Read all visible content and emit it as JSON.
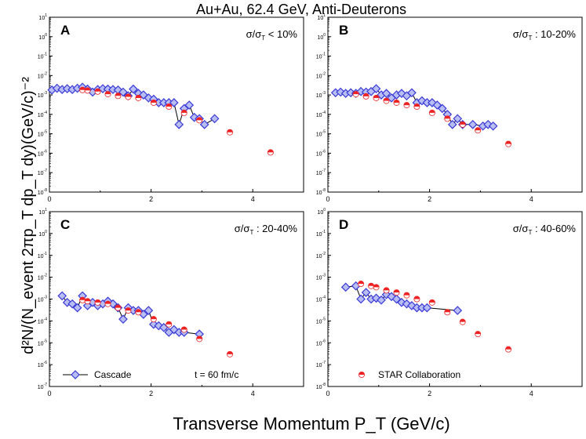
{
  "figure_title": "Au+Au, 62.4 GeV, Anti-Deuterons",
  "y_axis_label": "d²N/(N_event 2πp_T dp_T dy)(GeV/c)⁻²",
  "x_axis_label": "Transverse Momentum P_T (GeV/c)",
  "legend": {
    "cascade": "Cascade",
    "time": "t = 60 fm/c",
    "star": "STAR Collaboration"
  },
  "colors": {
    "cascade": "#3a3ad8",
    "cascade_light": "#b8bdf2",
    "star": "#ee2222",
    "axis": "#000000"
  },
  "chart_data": [
    {
      "type": "scatter",
      "panel": "A",
      "centrality": "σ/σ_T < 10%",
      "xlim": [
        0,
        5
      ],
      "x_ticks": [
        0,
        2,
        4
      ],
      "ylim_exp": [
        -8,
        1
      ],
      "y_ticks_exp": [
        -8,
        -7,
        -6,
        -5,
        -4,
        -3,
        -2,
        -1,
        0,
        1
      ],
      "xlabel": "Transverse Momentum P_T (GeV/c)",
      "ylabel": "d²N/(N_event 2πp_T dp_T dy)(GeV/c)⁻²",
      "series": [
        {
          "name": "Cascade",
          "marker": "diamond",
          "line": true,
          "x": [
            0.05,
            0.15,
            0.25,
            0.35,
            0.45,
            0.55,
            0.65,
            0.75,
            0.85,
            0.95,
            1.05,
            1.15,
            1.25,
            1.35,
            1.45,
            1.55,
            1.65,
            1.75,
            1.85,
            1.95,
            2.05,
            2.15,
            2.25,
            2.35,
            2.45,
            2.55,
            2.65,
            2.75,
            2.85,
            2.95,
            3.05,
            3.25
          ],
          "y": [
            0.0018,
            0.0022,
            0.0019,
            0.0021,
            0.0019,
            0.0022,
            0.0025,
            0.002,
            0.0014,
            0.0019,
            0.0021,
            0.002,
            0.0019,
            0.0018,
            0.0014,
            0.0009,
            0.002,
            0.0012,
            0.001,
            0.0007,
            0.0006,
            0.0004,
            0.0004,
            0.0004,
            0.0004,
            3e-05,
            0.0002,
            0.0003,
            7e-05,
            6e-05,
            3e-05,
            6e-05
          ]
        },
        {
          "name": "STAR Collaboration",
          "marker": "circle",
          "x": [
            0.65,
            0.75,
            0.95,
            1.15,
            1.35,
            1.55,
            1.75,
            2.05,
            2.35,
            2.65,
            2.95,
            3.55,
            4.35
          ],
          "y": [
            0.0018,
            0.0017,
            0.0015,
            0.0011,
            0.0009,
            0.0008,
            0.0007,
            0.0004,
            0.00025,
            0.00012,
            5e-05,
            1.2e-05,
            1.1e-06
          ]
        }
      ]
    },
    {
      "type": "scatter",
      "panel": "B",
      "centrality": "σ/σ_T : 10-20%",
      "xlim": [
        0,
        5
      ],
      "x_ticks": [
        0,
        2,
        4
      ],
      "ylim_exp": [
        -8,
        1
      ],
      "y_ticks_exp": [
        -8,
        -7,
        -6,
        -5,
        -4,
        -3,
        -2,
        -1,
        0,
        1
      ],
      "series": [
        {
          "name": "Cascade",
          "marker": "diamond",
          "line": true,
          "x": [
            0.15,
            0.25,
            0.35,
            0.45,
            0.55,
            0.65,
            0.75,
            0.85,
            0.95,
            1.05,
            1.15,
            1.25,
            1.35,
            1.45,
            1.55,
            1.65,
            1.75,
            1.85,
            1.95,
            2.05,
            2.15,
            2.25,
            2.35,
            2.45,
            2.55,
            2.65,
            2.85,
            3.05,
            3.15,
            3.25
          ],
          "y": [
            0.0013,
            0.0014,
            0.0012,
            0.0013,
            0.0012,
            0.0015,
            0.0014,
            0.0015,
            0.0021,
            0.001,
            0.0012,
            0.0007,
            0.001,
            0.0012,
            0.0009,
            0.0013,
            0.0004,
            0.0005,
            0.0004,
            0.0004,
            0.0003,
            0.0002,
            0.0001,
            3e-05,
            6e-05,
            3e-05,
            3e-05,
            2.5e-05,
            3e-05,
            2.5e-05
          ]
        },
        {
          "name": "STAR Collaboration",
          "marker": "circle",
          "x": [
            0.55,
            0.75,
            0.95,
            1.15,
            1.35,
            1.55,
            1.75,
            2.05,
            2.35,
            2.65,
            2.95,
            3.55
          ],
          "y": [
            0.0011,
            0.00085,
            0.0007,
            0.0005,
            0.0004,
            0.0003,
            0.00025,
            0.00012,
            6e-05,
            3e-05,
            1.5e-05,
            3e-06
          ]
        }
      ]
    },
    {
      "type": "scatter",
      "panel": "C",
      "centrality": "σ/σ_T : 20-40%",
      "xlim": [
        0,
        5
      ],
      "x_ticks": [
        0,
        2,
        4
      ],
      "ylim_exp": [
        -7,
        1
      ],
      "y_ticks_exp": [
        -7,
        -6,
        -5,
        -4,
        -3,
        -2,
        -1,
        0,
        1
      ],
      "series": [
        {
          "name": "Cascade",
          "marker": "diamond",
          "line": true,
          "x": [
            0.25,
            0.35,
            0.45,
            0.55,
            0.65,
            0.75,
            0.85,
            0.95,
            1.05,
            1.15,
            1.25,
            1.35,
            1.45,
            1.55,
            1.65,
            1.75,
            1.85,
            1.95,
            2.05,
            2.15,
            2.25,
            2.35,
            2.45,
            2.55,
            2.65,
            2.95
          ],
          "y": [
            0.0014,
            0.0007,
            0.0006,
            0.0004,
            0.0014,
            0.0005,
            0.0007,
            0.0005,
            0.0006,
            0.0008,
            0.0006,
            0.0004,
            0.00012,
            0.0004,
            0.0003,
            0.0003,
            0.0002,
            0.0003,
            7e-05,
            6e-05,
            5e-05,
            3e-05,
            4e-05,
            3e-05,
            3e-05,
            2.5e-05
          ]
        },
        {
          "name": "STAR Collaboration",
          "marker": "circle",
          "x": [
            0.65,
            0.75,
            0.95,
            1.15,
            1.35,
            1.55,
            1.75,
            2.05,
            2.35,
            2.65,
            2.95,
            3.55
          ],
          "y": [
            0.0009,
            0.0008,
            0.0007,
            0.0006,
            0.0004,
            0.0003,
            0.00025,
            0.00012,
            7e-05,
            4e-05,
            1.5e-05,
            3e-06
          ]
        }
      ]
    },
    {
      "type": "scatter",
      "panel": "D",
      "centrality": "σ/σ_T : 40-60%",
      "xlim": [
        0,
        5
      ],
      "x_ticks": [
        0,
        2,
        4
      ],
      "ylim_exp": [
        -8,
        0
      ],
      "y_ticks_exp": [
        -8,
        -7,
        -6,
        -5,
        -4,
        -3,
        -2,
        -1,
        0
      ],
      "series": [
        {
          "name": "Cascade",
          "marker": "diamond",
          "line": true,
          "x": [
            0.35,
            0.55,
            0.65,
            0.75,
            0.85,
            0.95,
            1.05,
            1.15,
            1.25,
            1.35,
            1.45,
            1.55,
            1.65,
            1.75,
            1.85,
            1.95,
            2.55
          ],
          "y": [
            0.00035,
            0.0004,
            0.0001,
            0.0002,
            0.0001,
            0.00011,
            9e-05,
            0.00016,
            0.00013,
            0.0001,
            7e-05,
            6e-05,
            5e-05,
            4e-05,
            4e-05,
            4e-05,
            3e-05
          ]
        },
        {
          "name": "STAR Collaboration",
          "marker": "circle",
          "x": [
            0.65,
            0.85,
            0.95,
            1.15,
            1.35,
            1.55,
            1.75,
            2.05,
            2.35,
            2.65,
            2.95,
            3.55
          ],
          "y": [
            0.0005,
            0.0004,
            0.00035,
            0.00025,
            0.0002,
            0.00015,
            0.0001,
            7e-05,
            2.5e-05,
            9e-06,
            2.5e-06,
            5e-07
          ]
        }
      ]
    }
  ]
}
